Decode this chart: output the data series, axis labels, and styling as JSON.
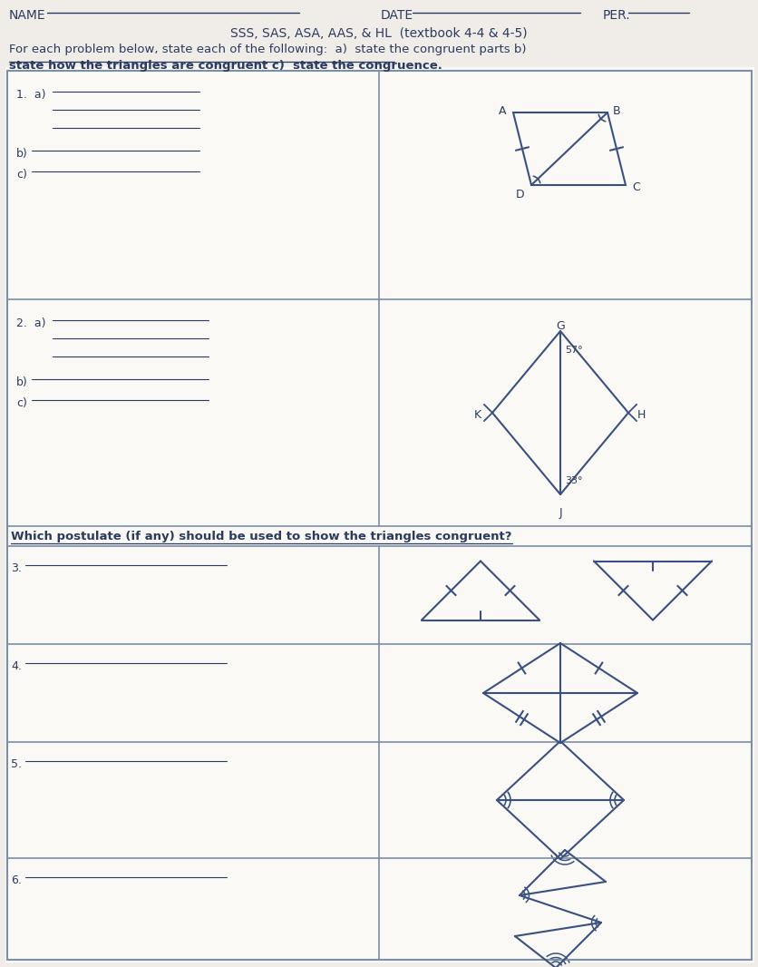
{
  "title": "SSS, SAS, ASA, AAS, & HL  (textbook 4-4 & 4-5)",
  "name_label": "NAME",
  "date_label": "DATE",
  "per_label": "PER.",
  "bg_color": "#f0ede8",
  "cell_bg": "#f5f3ee",
  "line_color": "#3a5080",
  "text_color": "#2a3a60",
  "header_color": "#2a3a60",
  "grid_color": "#7a8faa",
  "subtitle1": "For each problem below, state each of the following:  a)  state the congruent parts b)",
  "subtitle2": "state how the triangles are congruent c)  state the congruence.",
  "postulate_text": "Which postulate (if any) should be used to show the triangles congruent?"
}
